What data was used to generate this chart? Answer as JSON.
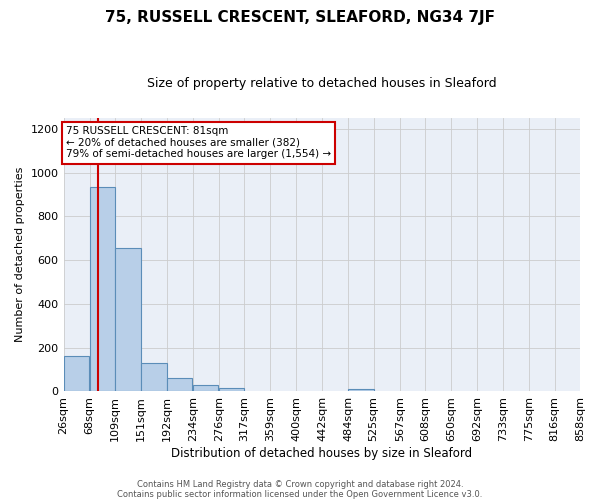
{
  "title": "75, RUSSELL CRESCENT, SLEAFORD, NG34 7JF",
  "subtitle": "Size of property relative to detached houses in Sleaford",
  "xlabel": "Distribution of detached houses by size in Sleaford",
  "ylabel": "Number of detached properties",
  "footnote1": "Contains HM Land Registry data © Crown copyright and database right 2024.",
  "footnote2": "Contains public sector information licensed under the Open Government Licence v3.0.",
  "bar_left_edges": [
    26,
    68,
    109,
    151,
    192,
    234,
    276,
    317,
    359,
    400,
    442,
    484,
    525,
    567,
    608,
    650,
    692,
    733,
    775,
    816
  ],
  "bar_heights": [
    160,
    935,
    655,
    128,
    62,
    28,
    15,
    0,
    0,
    0,
    0,
    12,
    0,
    0,
    0,
    0,
    0,
    0,
    0,
    0
  ],
  "bin_width": 41,
  "tick_labels": [
    "26sqm",
    "68sqm",
    "109sqm",
    "151sqm",
    "192sqm",
    "234sqm",
    "276sqm",
    "317sqm",
    "359sqm",
    "400sqm",
    "442sqm",
    "484sqm",
    "525sqm",
    "567sqm",
    "608sqm",
    "650sqm",
    "692sqm",
    "733sqm",
    "775sqm",
    "816sqm",
    "858sqm"
  ],
  "bar_color": "#b8cfe8",
  "bar_edge_color": "#5b8db8",
  "property_line_x": 81,
  "property_line_color": "#cc0000",
  "ylim": [
    0,
    1250
  ],
  "yticks": [
    0,
    200,
    400,
    600,
    800,
    1000,
    1200
  ],
  "grid_color": "#cccccc",
  "bg_color": "#eaeff7",
  "annotation_line1": "75 RUSSELL CRESCENT: 81sqm",
  "annotation_line2": "← 20% of detached houses are smaller (382)",
  "annotation_line3": "79% of semi-detached houses are larger (1,554) →",
  "annotation_box_color": "#ffffff",
  "annotation_box_edge_color": "#cc0000",
  "title_fontsize": 11,
  "subtitle_fontsize": 9
}
